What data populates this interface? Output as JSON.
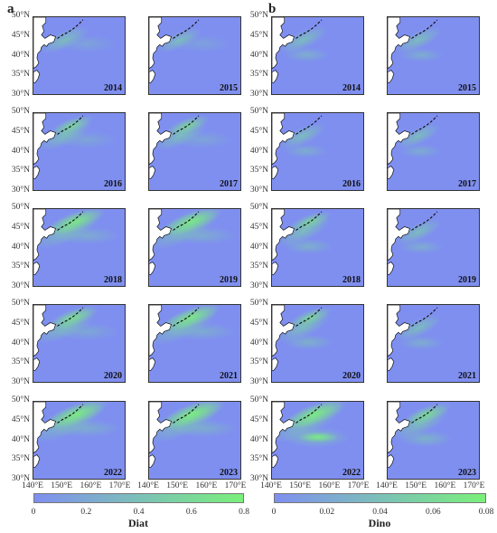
{
  "panels": {
    "left_label": "a",
    "right_label": "b"
  },
  "years": [
    "2014",
    "2015",
    "2016",
    "2017",
    "2018",
    "2019",
    "2020",
    "2021",
    "2022",
    "2023"
  ],
  "axis": {
    "lat_ticks": [
      "50°N",
      "45°N",
      "40°N",
      "35°N",
      "30°N"
    ],
    "lon_ticks": [
      "140°E",
      "150°E",
      "160°E",
      "170°E"
    ]
  },
  "colorbars": {
    "diat": {
      "label": "Diat",
      "ticks": [
        "0",
        "0.2",
        "0.4",
        "0.6",
        "0.8"
      ],
      "range": [
        0,
        0.8
      ],
      "colors": [
        "#7f8ff0",
        "#7bc0b8",
        "#7af07a"
      ]
    },
    "dino": {
      "label": "Dino",
      "ticks": [
        "0",
        "0.02",
        "0.04",
        "0.06",
        "0.08"
      ],
      "range": [
        0,
        0.08
      ],
      "colors": [
        "#7f8ff0",
        "#7bc0b8",
        "#7af07a"
      ]
    }
  },
  "colors": {
    "low": "#7f8ff0",
    "mid": "#7bc0b8",
    "high": "#7af07a",
    "land": "#ffffff"
  }
}
